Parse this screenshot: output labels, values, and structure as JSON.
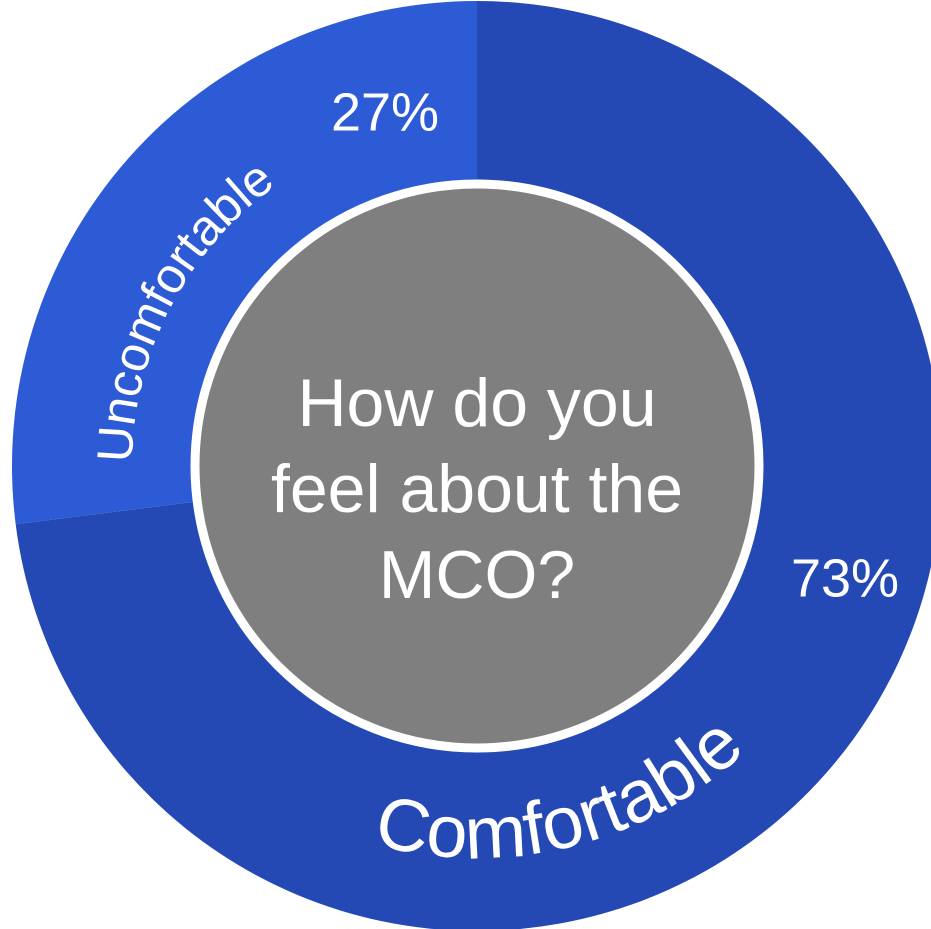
{
  "chart_data": {
    "type": "donut",
    "title": "How do you feel about the MCO?",
    "categories": [
      "Comfortable",
      "Uncomfortable"
    ],
    "values": [
      73,
      27
    ],
    "value_labels": [
      "73%",
      "27%"
    ],
    "colors": [
      "#2449b5",
      "#2d5bd6"
    ],
    "center_color": "#7f7f7f"
  }
}
